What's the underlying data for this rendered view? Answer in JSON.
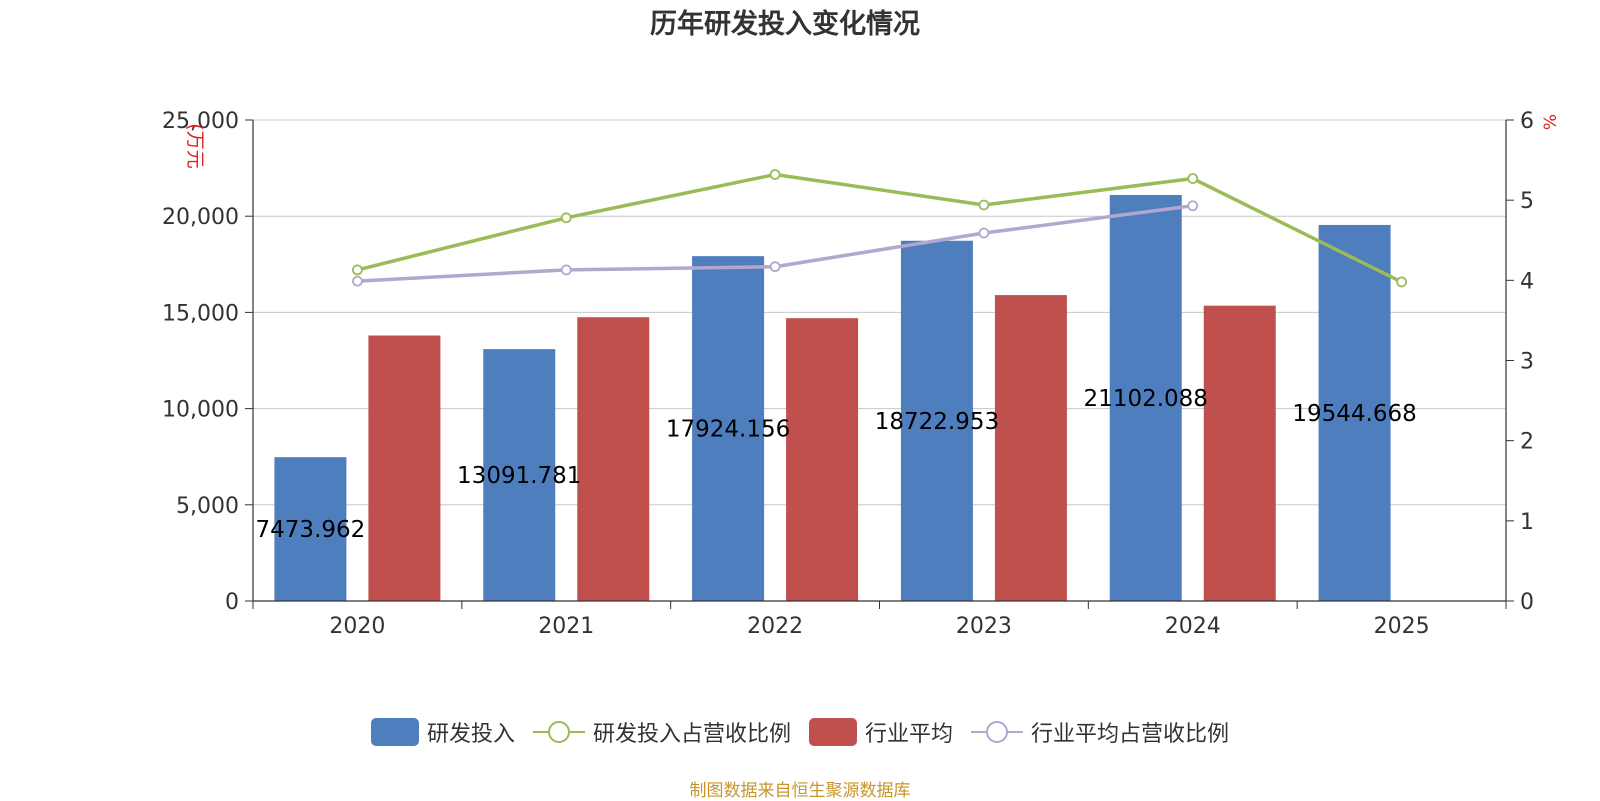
{
  "chart_data": {
    "type": "bar",
    "title": "历年研发投入变化情况",
    "categories": [
      "2020",
      "2021",
      "2022",
      "2023",
      "2024",
      "2025"
    ],
    "y_left": {
      "label": "(万元",
      "min": 0,
      "max": 25000,
      "ticks": [
        "0",
        "5,000",
        "10,000",
        "15,000",
        "20,000",
        "25,000"
      ],
      "tick_values": [
        0,
        5000,
        10000,
        15000,
        20000,
        25000
      ]
    },
    "y_right": {
      "label": "%",
      "min": 0,
      "max": 6,
      "ticks": [
        "0",
        "1",
        "2",
        "3",
        "4",
        "5",
        "6"
      ],
      "tick_values": [
        0,
        1,
        2,
        3,
        4,
        5,
        6
      ]
    },
    "bar_series": [
      {
        "name": "研发投入",
        "color": "#4f7ebe",
        "values": [
          7473.962,
          13091.781,
          17924.156,
          18722.953,
          21102.088,
          19544.668
        ],
        "labels": [
          "7473.962",
          "13091.781",
          "17924.156",
          "18722.953",
          "21102.088",
          "19544.668"
        ]
      },
      {
        "name": "行业平均",
        "color": "#c0504d",
        "values": [
          13800,
          14750,
          14700,
          15900,
          15350,
          null
        ]
      }
    ],
    "line_series": [
      {
        "name": "研发投入占营收比例",
        "color": "#9bbb59",
        "values": [
          4.13,
          4.78,
          5.32,
          4.94,
          5.27,
          3.98
        ]
      },
      {
        "name": "行业平均占营收比例",
        "color": "#b3a6cf",
        "values": [
          3.99,
          4.13,
          4.17,
          4.59,
          4.93,
          null
        ]
      }
    ],
    "legend": "bottom"
  },
  "footer": {
    "source": "制图数据来自恒生聚源数据库"
  }
}
